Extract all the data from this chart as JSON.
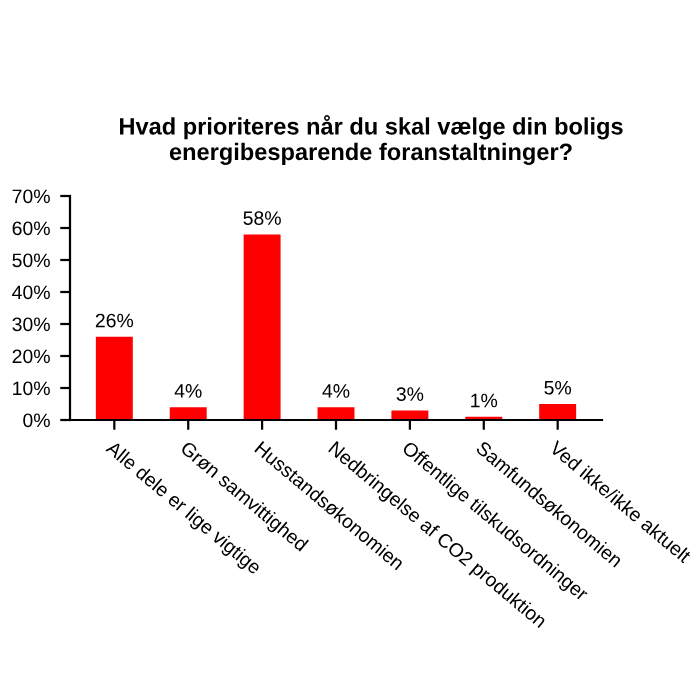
{
  "chart_data": {
    "type": "bar",
    "title": "Hvad prioriteres når du skal vælge din boligs energibesparende foranstaltninger?",
    "categories": [
      "Alle dele er lige vigtige",
      "Grøn samvittighed",
      "Husstandsøkonomien",
      "Nedbringelse af CO2 produktion",
      "Offentlige tilskudsordninger",
      "Samfundsøkonomien",
      "Ved ikke/ikke aktuelt"
    ],
    "values": [
      26,
      4,
      58,
      4,
      3,
      1,
      5
    ],
    "value_labels": [
      "26%",
      "4%",
      "58%",
      "4%",
      "3%",
      "1%",
      "5%"
    ],
    "color": "#ff0000",
    "ylim": [
      0,
      70
    ],
    "yticks": [
      {
        "value": 0,
        "label": "0%"
      },
      {
        "value": 10,
        "label": "10%"
      },
      {
        "value": 20,
        "label": "20%"
      },
      {
        "value": 30,
        "label": "30%"
      },
      {
        "value": 40,
        "label": "40%"
      },
      {
        "value": 50,
        "label": "50%"
      },
      {
        "value": 60,
        "label": "60%"
      },
      {
        "value": 70,
        "label": "70%"
      }
    ],
    "grid": false,
    "legend": false
  }
}
